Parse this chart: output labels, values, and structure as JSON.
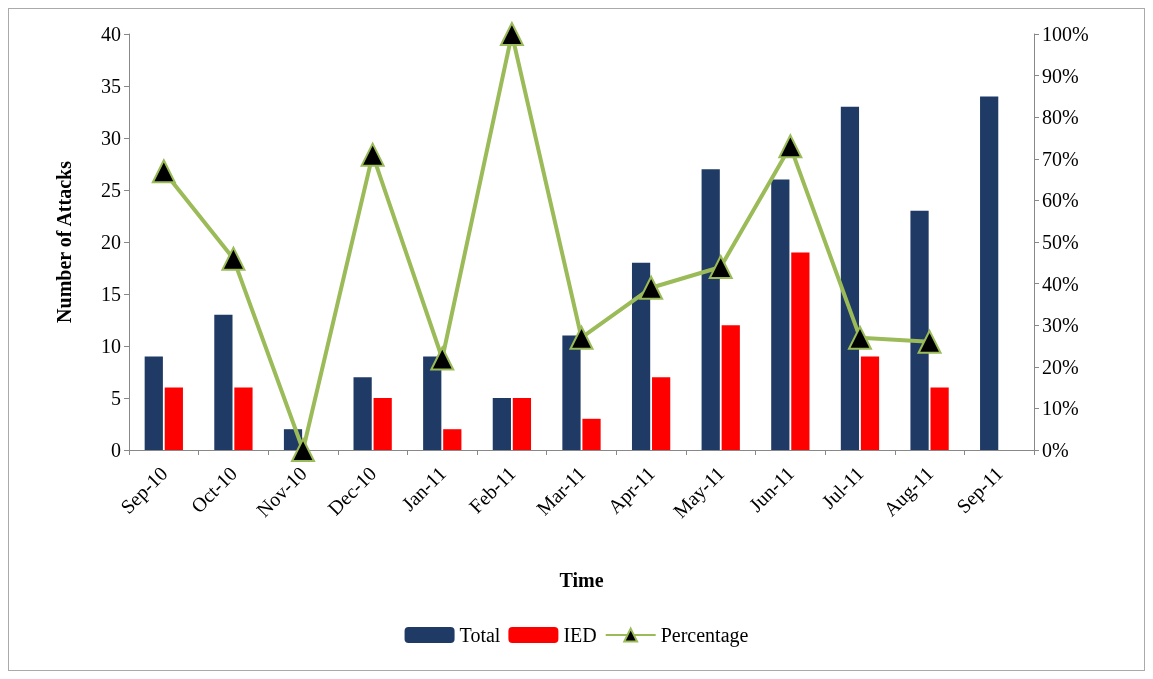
{
  "chart_data": {
    "type": "bar",
    "xlabel": "Time",
    "ylabel": "Number of Attacks",
    "categories": [
      "Sep-10",
      "Oct-10",
      "Nov-10",
      "Dec-10",
      "Jan-11",
      "Feb-11",
      "Mar-11",
      "Apr-11",
      "May-11",
      "Jun-11",
      "Jul-11",
      "Aug-11",
      "Sep-11"
    ],
    "series": [
      {
        "name": "Total",
        "color": "#1f3a64",
        "values": [
          9,
          13,
          2,
          7,
          9,
          5,
          11,
          18,
          27,
          26,
          33,
          23,
          34
        ]
      },
      {
        "name": "IED",
        "color": "#ff0000",
        "values": [
          6,
          6,
          0,
          5,
          2,
          5,
          3,
          7,
          12,
          19,
          9,
          6,
          null
        ]
      },
      {
        "name": "Percentage",
        "type": "line",
        "axis": "y2",
        "color": "#9bbb59",
        "values": [
          67,
          46,
          0,
          71,
          22,
          100,
          27,
          39,
          44,
          73,
          27,
          26,
          null
        ]
      }
    ],
    "ylim": [
      0,
      40
    ],
    "yticks": [
      0,
      5,
      10,
      15,
      20,
      25,
      30,
      35,
      40
    ],
    "y2lim": [
      0,
      100
    ],
    "y2ticks": [
      {
        "value": 0,
        "label": "0%"
      },
      {
        "value": 10,
        "label": "10%"
      },
      {
        "value": 20,
        "label": "20%"
      },
      {
        "value": 30,
        "label": "30%"
      },
      {
        "value": 40,
        "label": "40%"
      },
      {
        "value": 50,
        "label": "50%"
      },
      {
        "value": 60,
        "label": "60%"
      },
      {
        "value": 70,
        "label": "70%"
      },
      {
        "value": 80,
        "label": "80%"
      },
      {
        "value": 90,
        "label": "90%"
      },
      {
        "value": 100,
        "label": "100%"
      }
    ],
    "grid": false,
    "legend": "bottom",
    "marker": "triangle",
    "line_style": "solid"
  }
}
